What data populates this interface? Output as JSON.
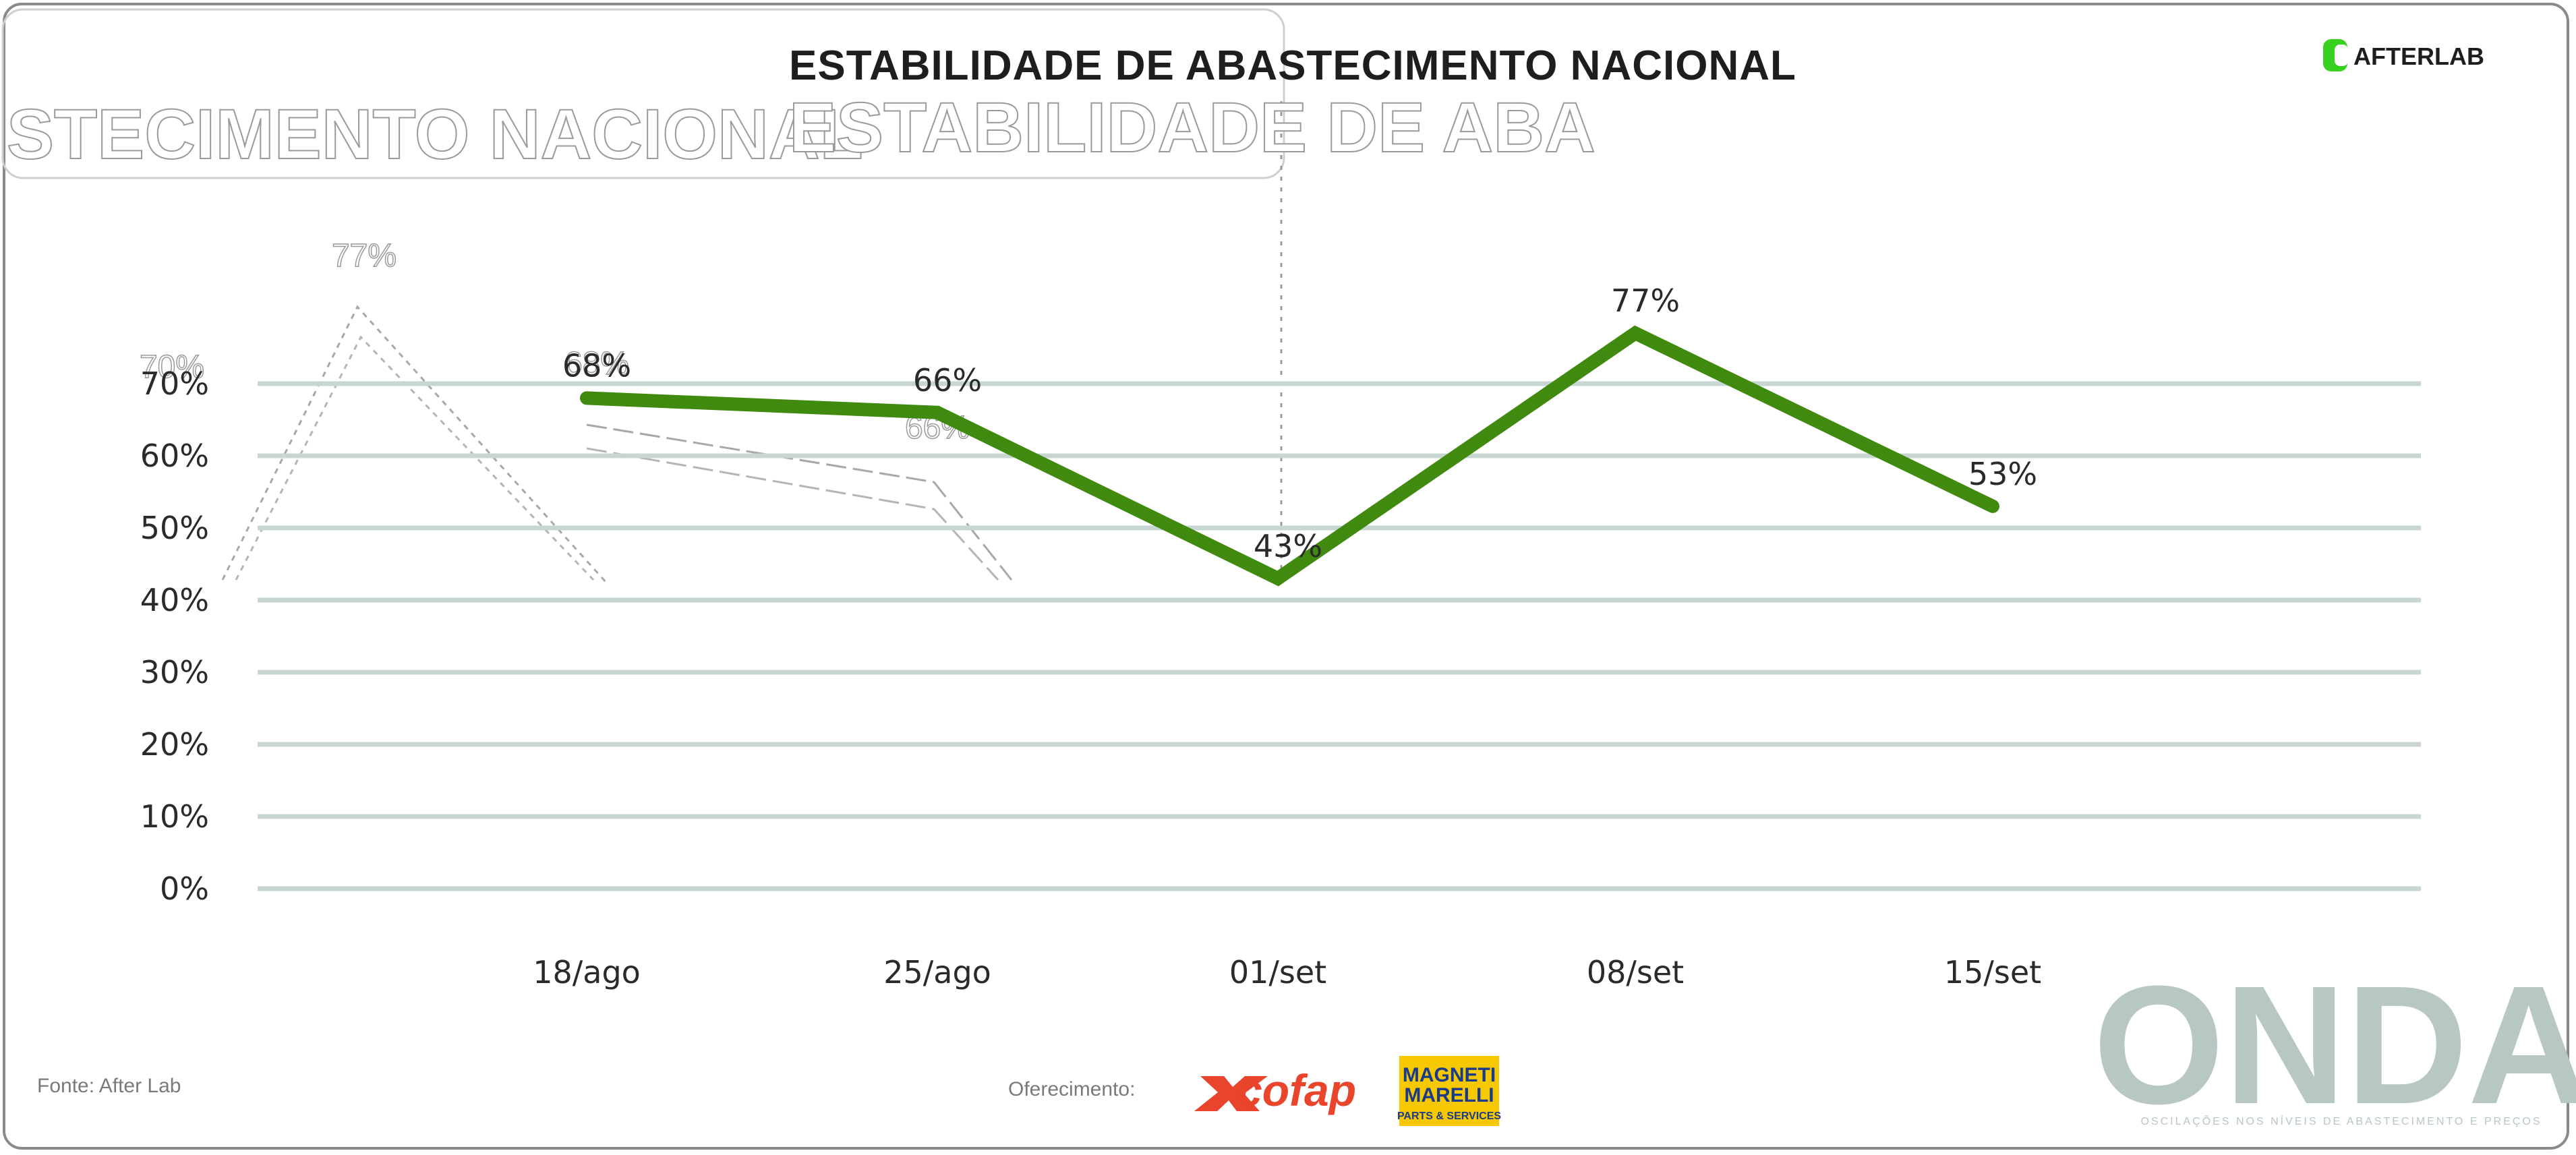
{
  "chart_data": {
    "type": "line",
    "title": "ESTABILIDADE DE ABASTECIMENTO NACIONAL",
    "categories": [
      "18/ago",
      "25/ago",
      "01/set",
      "08/set",
      "15/set"
    ],
    "values": [
      68,
      66,
      43,
      77,
      53
    ],
    "data_labels": [
      "68%",
      "66%",
      "43%",
      "77%",
      "53%"
    ],
    "y_ticks": [
      "0%",
      "10%",
      "20%",
      "30%",
      "40%",
      "50%",
      "60%",
      "70%"
    ],
    "y_tick_values": [
      0,
      10,
      20,
      30,
      40,
      50,
      60,
      70
    ],
    "ylim": [
      0,
      70
    ],
    "grid": true,
    "line_color": "#3f8a0f",
    "ghost_values": [
      77,
      70,
      68,
      66
    ]
  },
  "header": {
    "brand_name": "AFTERLAB",
    "ghost_title_left": "STECIMENTO NACIONAL",
    "ghost_title_mid": "ESTABILIDADE DE ABA"
  },
  "footer": {
    "source": "Fonte: After Lab",
    "sponsor_label": "Oferecimento:",
    "cofap": "cofap",
    "magneti_line1": "MAGNETI",
    "magneti_line2": "MARELLI",
    "magneti_line3": "PARTS & SERVICES",
    "onda": "ONDA",
    "onda_tagline": "OSCILAÇÕES NOS NÍVEIS DE ABASTECIMENTO E PREÇOS"
  },
  "colors": {
    "grid": "#c8d6d2",
    "brand_green": "#39d11f",
    "onda": "#b7c7c1"
  }
}
